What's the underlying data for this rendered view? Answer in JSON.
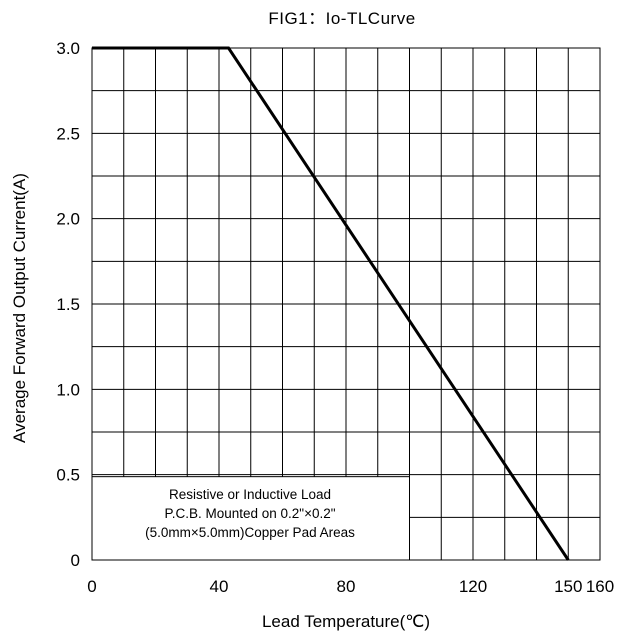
{
  "chart_data": {
    "type": "line",
    "title": "FIG1：Io-TLCurve",
    "xlabel": "Lead Temperature(℃)",
    "ylabel": "Average Forward Output Current(A)",
    "xlim": [
      0,
      160
    ],
    "ylim": [
      0,
      3.0
    ],
    "x_ticks": [
      0,
      40,
      80,
      120,
      150,
      160
    ],
    "x_tick_labels": [
      "0",
      "40",
      "80",
      "120",
      "150",
      "160"
    ],
    "y_ticks": [
      0,
      0.5,
      1.0,
      1.5,
      2.0,
      2.5,
      3.0
    ],
    "y_tick_labels": [
      "0",
      "0.5",
      "1.0",
      "1.5",
      "2.0",
      "2.5",
      "3.0"
    ],
    "grid": true,
    "series": [
      {
        "x": [
          0,
          43,
          150
        ],
        "y": [
          3.0,
          3.0,
          0
        ],
        "color": "#000000"
      }
    ],
    "annotation": {
      "lines": [
        "Resistive or Inductive Load",
        "P.C.B. Mounted on 0.2\"×0.2\"",
        "(5.0mm×5.0mm)Copper Pad Areas"
      ]
    }
  }
}
